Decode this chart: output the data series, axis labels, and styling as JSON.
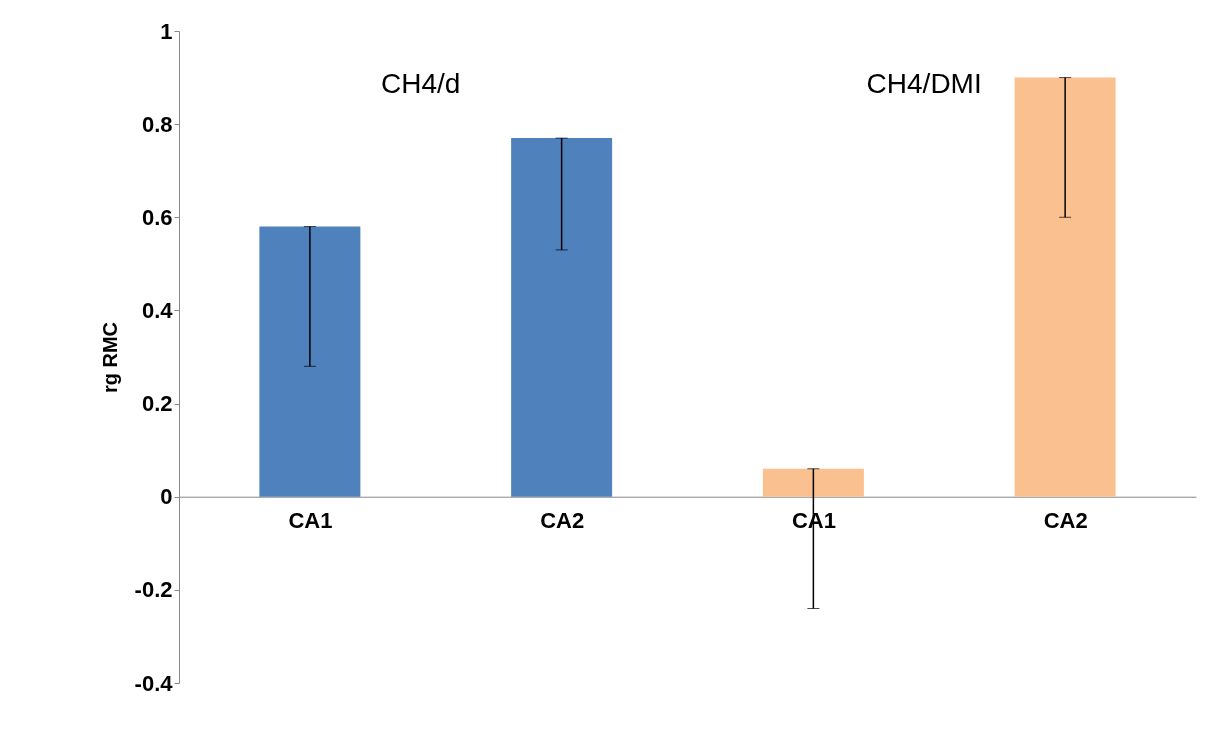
{
  "chart_data": {
    "type": "bar",
    "ylabel": "rg RMC",
    "categories": [
      "CA1",
      "CA2",
      "CA1",
      "CA2"
    ],
    "values": [
      0.58,
      0.77,
      0.06,
      0.9
    ],
    "colors": [
      "#4f81bd",
      "#4f81bd",
      "#fac090",
      "#fac090"
    ],
    "errors": [
      [
        0.28,
        0.58
      ],
      [
        0.53,
        0.77
      ],
      [
        -0.24,
        0.06
      ],
      [
        0.6,
        0.9
      ]
    ],
    "ylim": [
      -0.4,
      1
    ],
    "yticks": [
      -0.4,
      -0.2,
      0,
      0.2,
      0.4,
      0.6,
      0.8,
      1
    ],
    "annotations": [
      "CH4/d",
      "CH4/DMI"
    ],
    "grid": false
  }
}
